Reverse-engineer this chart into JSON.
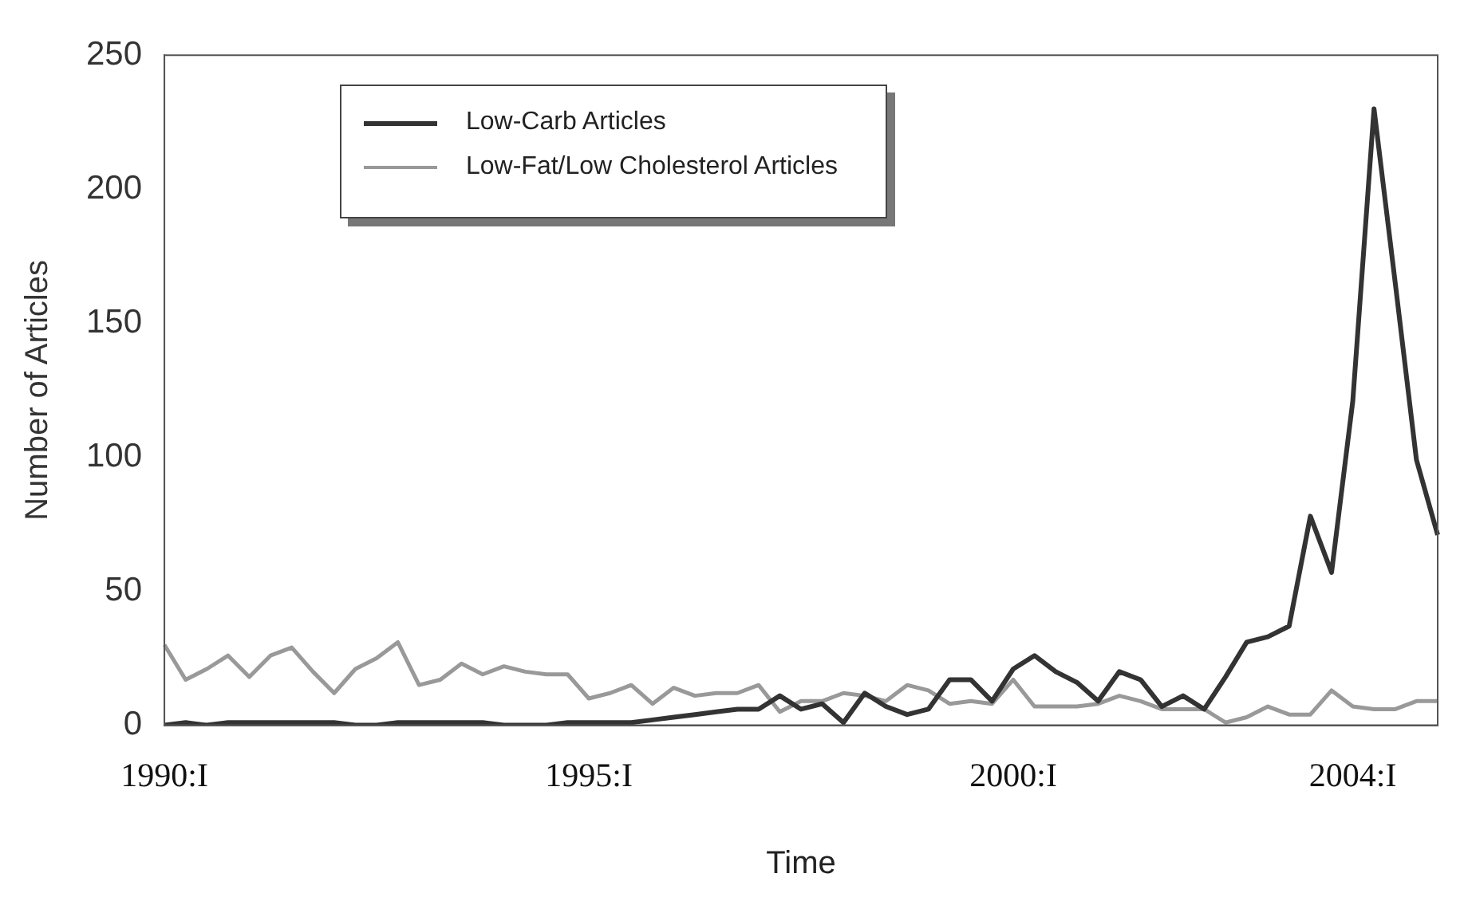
{
  "chart_data": {
    "type": "line",
    "xlabel": "Time",
    "ylabel": "Number of Articles",
    "categories": [
      "1990:I",
      null,
      null,
      null,
      null,
      null,
      null,
      null,
      null,
      null,
      null,
      null,
      null,
      null,
      null,
      null,
      null,
      null,
      null,
      null,
      "1995:I",
      null,
      null,
      null,
      null,
      null,
      null,
      null,
      null,
      null,
      null,
      null,
      null,
      null,
      null,
      null,
      null,
      null,
      null,
      null,
      "2000:I",
      null,
      null,
      null,
      null,
      null,
      null,
      null,
      null,
      null,
      null,
      null,
      null,
      null,
      null,
      null,
      "2004:I",
      null,
      null,
      null,
      null
    ],
    "series": [
      {
        "name": "Low-Carb Articles",
        "color": "#333333",
        "values": [
          0,
          1,
          0,
          1,
          1,
          1,
          1,
          1,
          1,
          0,
          0,
          1,
          1,
          1,
          1,
          1,
          0,
          0,
          0,
          1,
          1,
          1,
          1,
          2,
          3,
          4,
          5,
          6,
          6,
          11,
          6,
          8,
          1,
          12,
          7,
          4,
          6,
          17,
          17,
          9,
          21,
          26,
          20,
          16,
          9,
          20,
          17,
          7,
          11,
          6,
          18,
          31,
          33,
          37,
          78,
          57,
          121,
          230,
          165,
          99,
          71
        ]
      },
      {
        "name": "Low-Fat/Low Cholesterol Articles",
        "color": "#999999",
        "values": [
          30,
          17,
          21,
          26,
          18,
          26,
          29,
          20,
          12,
          21,
          25,
          31,
          15,
          17,
          23,
          19,
          22,
          20,
          19,
          19,
          10,
          12,
          15,
          8,
          14,
          11,
          12,
          12,
          15,
          5,
          9,
          9,
          12,
          11,
          9,
          15,
          13,
          8,
          9,
          8,
          17,
          7,
          7,
          7,
          8,
          11,
          9,
          6,
          6,
          6,
          1,
          3,
          7,
          4,
          4,
          13,
          7,
          6,
          6,
          9,
          9
        ]
      }
    ],
    "ylim": [
      0,
      250
    ],
    "yticks": [
      0,
      50,
      100,
      150,
      200,
      250
    ],
    "grid": false,
    "legend": "top left",
    "marker": "none",
    "line_style": "solid"
  }
}
